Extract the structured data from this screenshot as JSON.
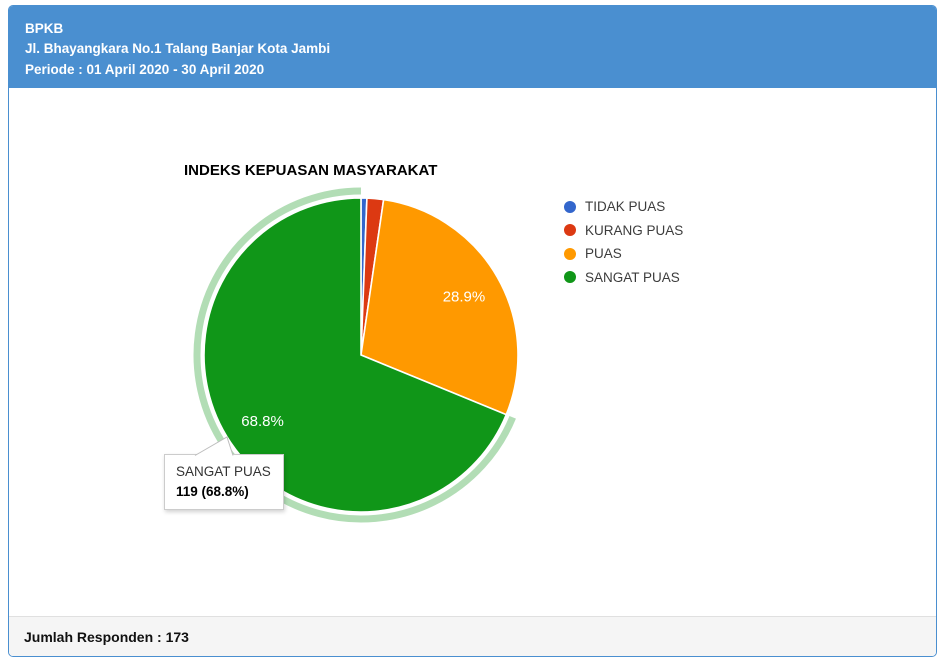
{
  "header": {
    "title": "BPKB",
    "address": "Jl. Bhayangkara No.1 Talang Banjar Kota Jambi",
    "period": "Periode : 01 April 2020 - 30 April 2020"
  },
  "chart_data": {
    "type": "pie",
    "title": "INDEKS KEPUASAN MASYARAKAT",
    "categories": [
      "TIDAK PUAS",
      "KURANG PUAS",
      "PUAS",
      "SANGAT PUAS"
    ],
    "values": [
      1,
      3,
      50,
      119
    ],
    "percentages": [
      0.6,
      1.7,
      28.9,
      68.8
    ],
    "slice_labels": [
      "",
      "",
      "28.9%",
      "68.8%"
    ],
    "colors": [
      "#3366cc",
      "#dc3912",
      "#ff9900",
      "#109618"
    ],
    "legend_position": "right",
    "start_angle_deg": 0,
    "highlighted_index": 3,
    "highlight_ring_color": "rgba(16,150,24,0.32)",
    "tooltip": {
      "label": "SANGAT PUAS",
      "value": "119 (68.8%)"
    }
  },
  "footer": {
    "respondents_text": "Jumlah Responden : 173"
  },
  "colors": {
    "header_bg": "#4a8fd0",
    "card_border": "#4a8fd0",
    "footer_bg": "#f5f5f5",
    "slice_label_text": "#ffffff"
  }
}
